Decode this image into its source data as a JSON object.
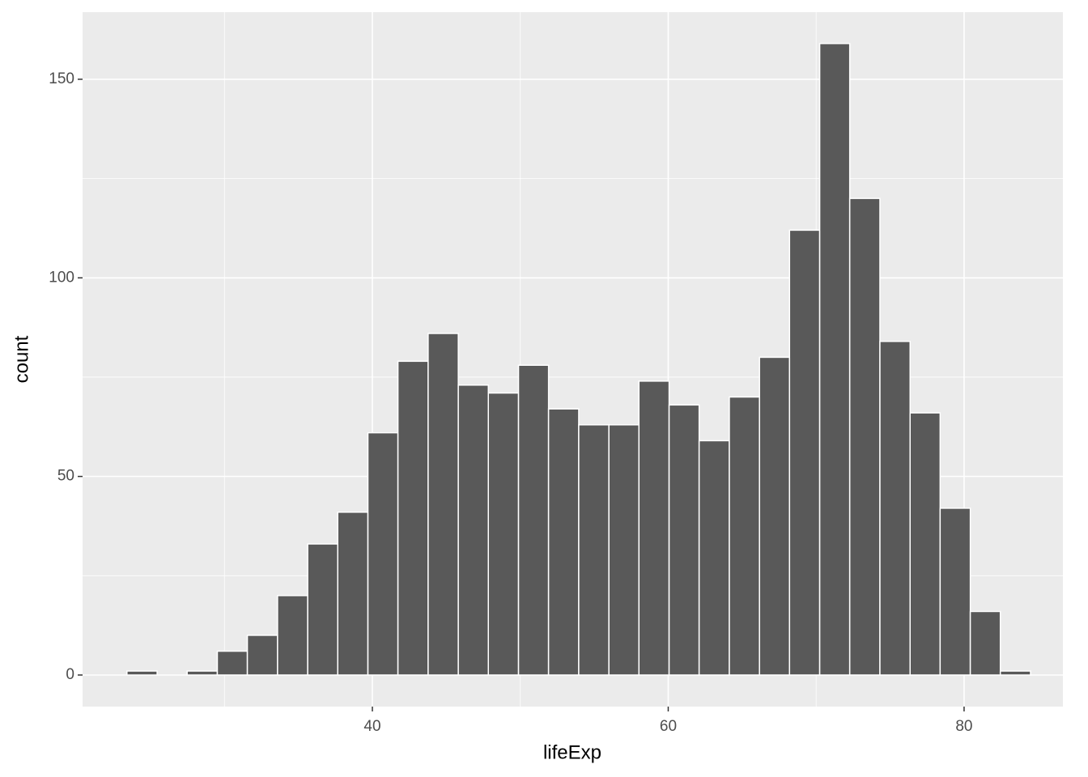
{
  "chart_data": {
    "type": "histogram",
    "x_label": "lifeExp",
    "y_label": "count",
    "bins": [
      23.41,
      25.45,
      27.48,
      29.52,
      31.55,
      33.59,
      35.63,
      37.66,
      39.7,
      41.73,
      43.77,
      45.81,
      47.84,
      49.88,
      51.91,
      53.95,
      55.99,
      58.02,
      60.06,
      62.09,
      64.13,
      66.17,
      68.2,
      70.24,
      72.27,
      74.31,
      76.35,
      78.38,
      80.42,
      82.45,
      84.49
    ],
    "counts": [
      1,
      0,
      1,
      6,
      10,
      20,
      33,
      41,
      61,
      79,
      86,
      73,
      71,
      78,
      67,
      63,
      63,
      74,
      68,
      59,
      70,
      80,
      112,
      159,
      120,
      84,
      66,
      42,
      16,
      1
    ],
    "color": "#595959",
    "xlim": [
      20.41,
      86.68
    ],
    "ylim": [
      -7.95,
      166.9
    ],
    "xticks": [
      40,
      60,
      80
    ],
    "yticks": [
      0,
      50,
      100,
      150
    ],
    "xminor": [
      30,
      50,
      70
    ],
    "yminor": [
      25,
      75,
      125
    ],
    "grid": true
  }
}
